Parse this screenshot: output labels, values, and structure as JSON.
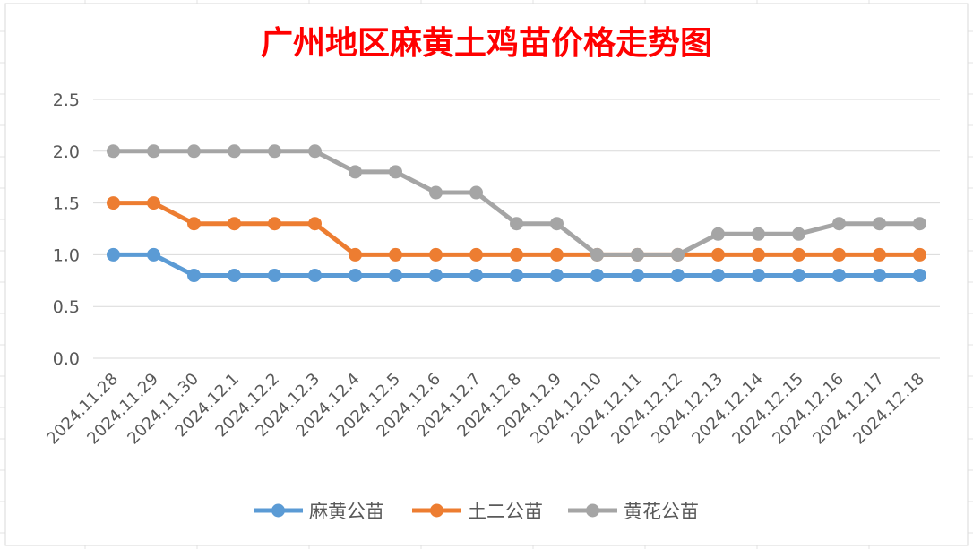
{
  "chart_data": {
    "type": "line",
    "title": "广州地区麻黄土鸡苗价格走势图",
    "xlabel": "",
    "ylabel": "",
    "categories": [
      "2024.11.28",
      "2024.11.29",
      "2024.11.30",
      "2024.12.1",
      "2024.12.2",
      "2024.12.3",
      "2024.12.4",
      "2024.12.5",
      "2024.12.6",
      "2024.12.7",
      "2024.12.8",
      "2024.12.9",
      "2024.12.10",
      "2024.12.11",
      "2024.12.12",
      "2024.12.13",
      "2024.12.14",
      "2024.12.15",
      "2024.12.16",
      "2024.12.17",
      "2024.12.18"
    ],
    "y_ticks": [
      "0.0",
      "0.5",
      "1.0",
      "1.5",
      "2.0",
      "2.5"
    ],
    "ylim": [
      0,
      2.5
    ],
    "grid": true,
    "legend_position": "bottom",
    "series": [
      {
        "name": "麻黄公苗",
        "color": "#5b9bd5",
        "values": [
          1.0,
          1.0,
          0.8,
          0.8,
          0.8,
          0.8,
          0.8,
          0.8,
          0.8,
          0.8,
          0.8,
          0.8,
          0.8,
          0.8,
          0.8,
          0.8,
          0.8,
          0.8,
          0.8,
          0.8,
          0.8
        ]
      },
      {
        "name": "土二公苗",
        "color": "#ed7d31",
        "values": [
          1.5,
          1.5,
          1.3,
          1.3,
          1.3,
          1.3,
          1.0,
          1.0,
          1.0,
          1.0,
          1.0,
          1.0,
          1.0,
          1.0,
          1.0,
          1.0,
          1.0,
          1.0,
          1.0,
          1.0,
          1.0
        ]
      },
      {
        "name": "黄花公苗",
        "color": "#a5a5a5",
        "values": [
          2.0,
          2.0,
          2.0,
          2.0,
          2.0,
          2.0,
          1.8,
          1.8,
          1.6,
          1.6,
          1.3,
          1.3,
          1.0,
          1.0,
          1.0,
          1.2,
          1.2,
          1.2,
          1.3,
          1.3,
          1.3
        ]
      }
    ]
  }
}
